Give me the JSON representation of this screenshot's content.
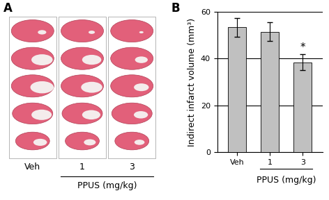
{
  "panel_labels": [
    "A",
    "B"
  ],
  "photo_panel": {
    "columns": [
      "Veh",
      "1",
      "3"
    ],
    "group_label": "PPUS (mg/kg)"
  },
  "chart_data": {
    "type": "bar",
    "categories": [
      "Veh",
      "1",
      "3"
    ],
    "values": [
      53.5,
      51.5,
      38.5
    ],
    "errors": [
      4,
      4,
      3.5
    ],
    "color": "#c0c0c0",
    "ylabel": "Indirect infarct volume (mm³)",
    "xlabel": "PPUS (mg/kg)",
    "annotations": [
      {
        "category": "3",
        "text": "*"
      }
    ],
    "ylim": [
      0,
      60
    ],
    "yticks": [
      0,
      20,
      40,
      60
    ],
    "grid": true
  }
}
